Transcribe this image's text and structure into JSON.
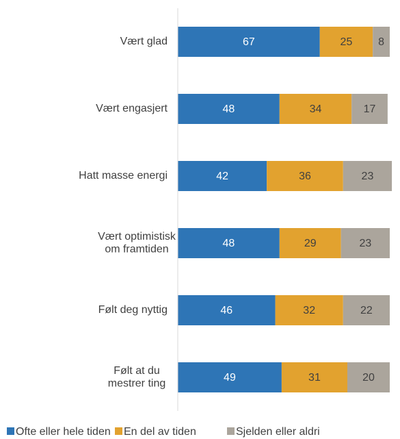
{
  "chart_data": {
    "type": "stacked-barh",
    "categories": [
      "Vært glad",
      "Vært engasjert",
      "Hatt masse energi",
      "Vært optimistisk om framtiden",
      "Følt deg nyttig",
      "Følt at du mestrer ting"
    ],
    "series": [
      {
        "name": "Ofte eller hele tiden",
        "color": "#2e75b6",
        "values": [
          67,
          48,
          42,
          48,
          46,
          49
        ]
      },
      {
        "name": "En del av tiden",
        "color": "#e2a22f",
        "values": [
          25,
          34,
          36,
          29,
          32,
          31
        ]
      },
      {
        "name": "Sjelden eller aldri",
        "color": "#aba59c",
        "values": [
          8,
          17,
          23,
          23,
          22,
          20
        ]
      }
    ],
    "xlim": [
      0,
      100
    ]
  }
}
